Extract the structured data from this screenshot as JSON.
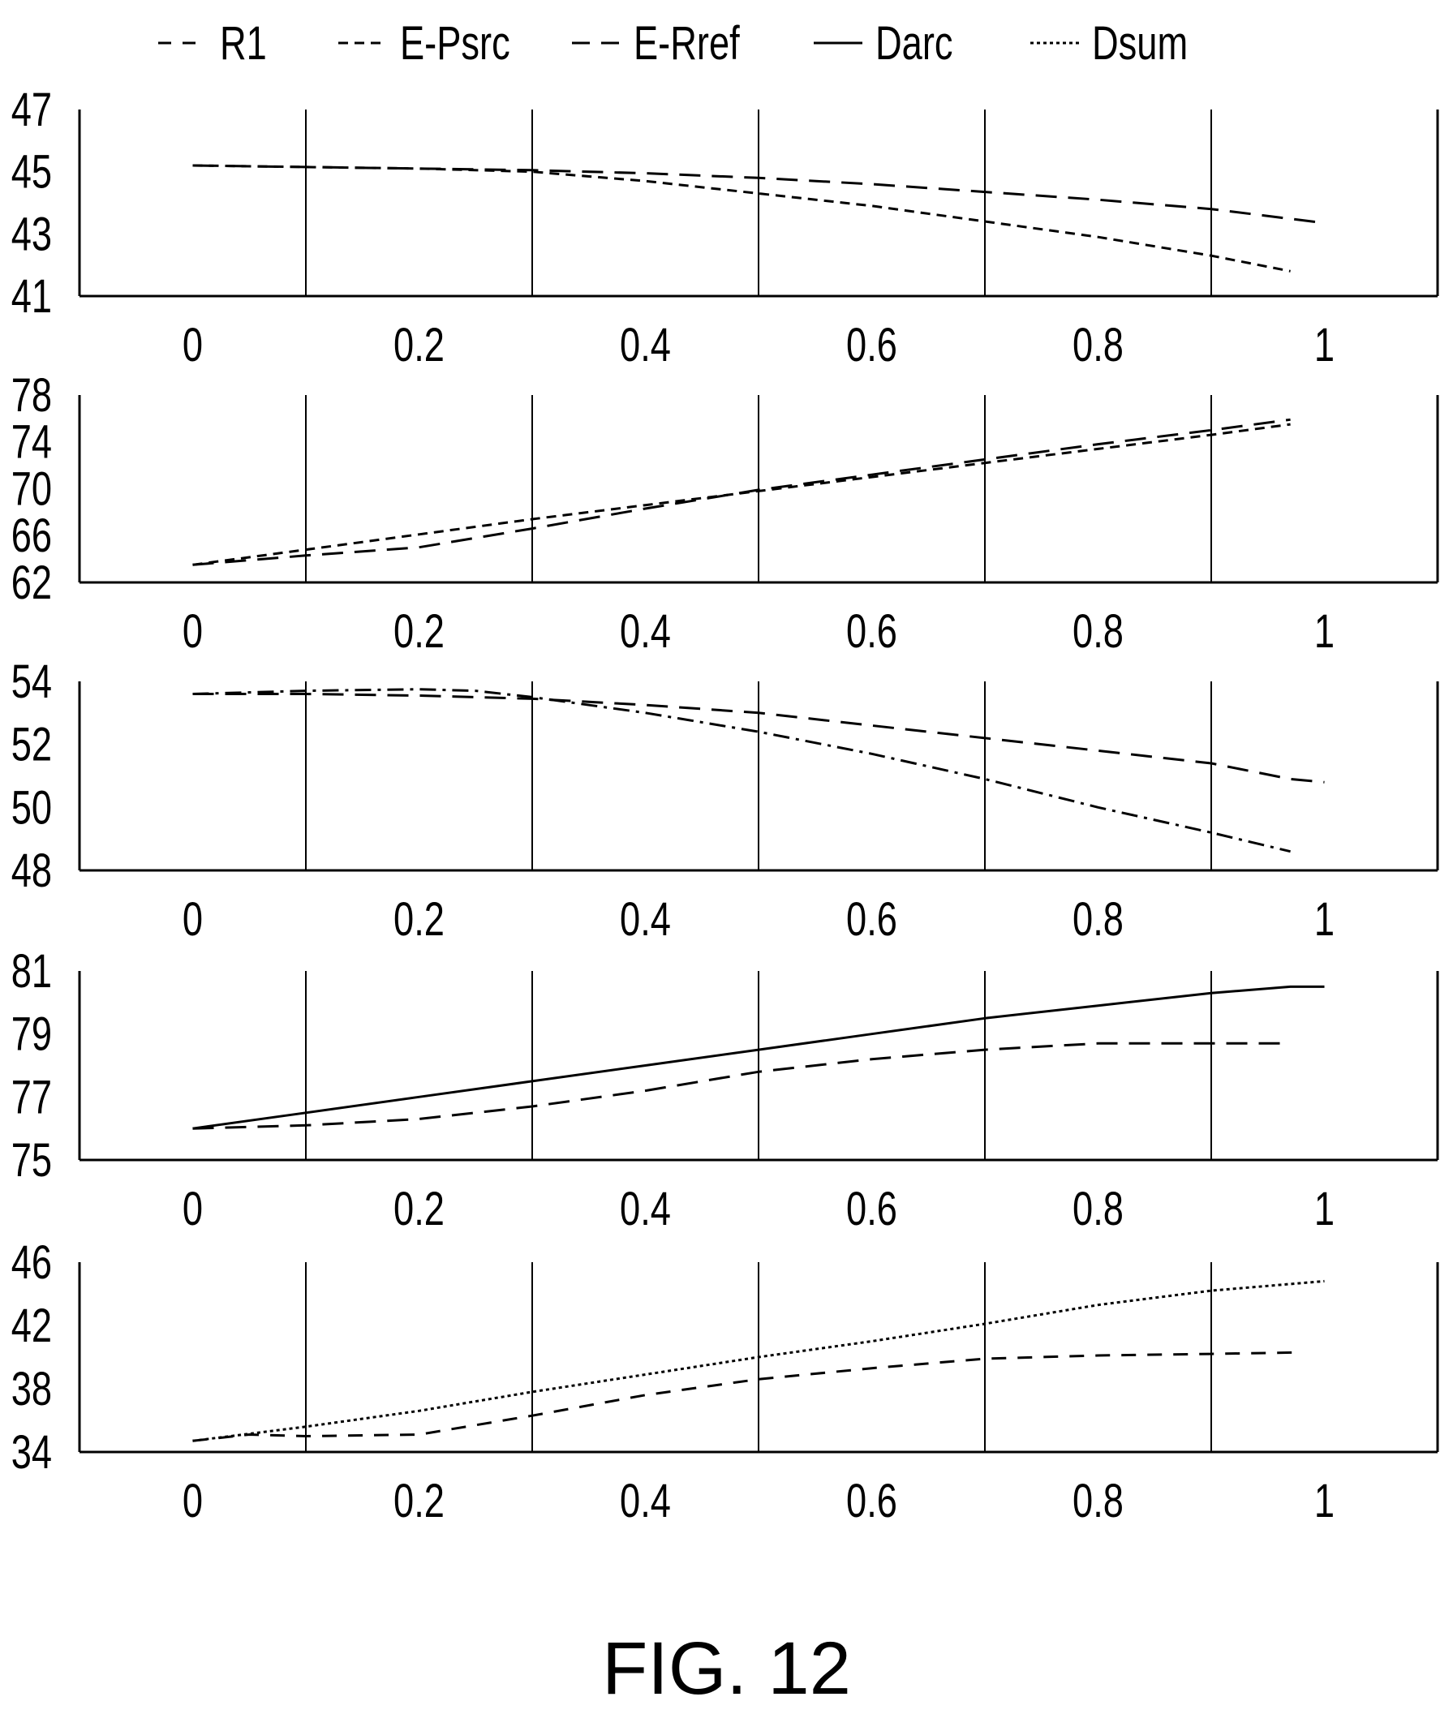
{
  "legend": [
    {
      "label": "R1",
      "style": "dash-gap"
    },
    {
      "label": "E-Psrc",
      "style": "short-dash"
    },
    {
      "label": "E-Rref",
      "style": "long-dash"
    },
    {
      "label": "Darc",
      "style": "solid"
    },
    {
      "label": "Dsum",
      "style": "dotted"
    }
  ],
  "caption": "FIG. 12",
  "chart_data": [
    {
      "type": "line",
      "x_ticks": [
        "0",
        "0.2",
        "0.4",
        "0.6",
        "0.8",
        "1"
      ],
      "y_ticks": [
        "41",
        "43",
        "45",
        "47"
      ],
      "xlim": [
        -0.1,
        1.1
      ],
      "ylim": [
        41,
        47
      ],
      "grid": "vertical",
      "series": [
        {
          "name": "E-Psrc",
          "style": "short-dash",
          "x": [
            0,
            0.1,
            0.2,
            0.3,
            0.4,
            0.5,
            0.6,
            0.7,
            0.8,
            0.9,
            0.97
          ],
          "y": [
            45.2,
            45.15,
            45.1,
            45.0,
            44.7,
            44.3,
            43.9,
            43.4,
            42.9,
            42.3,
            41.8
          ]
        },
        {
          "name": "E-Rref",
          "style": "long-dash",
          "x": [
            0,
            0.1,
            0.2,
            0.3,
            0.4,
            0.5,
            0.6,
            0.7,
            0.8,
            0.9,
            1.0
          ],
          "y": [
            45.2,
            45.15,
            45.1,
            45.05,
            44.95,
            44.8,
            44.6,
            44.35,
            44.1,
            43.8,
            43.35
          ]
        }
      ]
    },
    {
      "type": "line",
      "x_ticks": [
        "0",
        "0.2",
        "0.4",
        "0.6",
        "0.8",
        "1"
      ],
      "y_ticks": [
        "62",
        "66",
        "70",
        "74",
        "78"
      ],
      "xlim": [
        -0.1,
        1.1
      ],
      "ylim": [
        62,
        78
      ],
      "grid": "vertical",
      "series": [
        {
          "name": "E-Psrc",
          "style": "short-dash",
          "x": [
            0,
            0.1,
            0.2,
            0.3,
            0.4,
            0.5,
            0.6,
            0.7,
            0.8,
            0.9,
            0.97
          ],
          "y": [
            63.5,
            64.8,
            66.1,
            67.4,
            68.6,
            69.8,
            71.0,
            72.2,
            73.4,
            74.6,
            75.5
          ]
        },
        {
          "name": "E-Rref",
          "style": "long-dash",
          "x": [
            0,
            0.1,
            0.2,
            0.3,
            0.4,
            0.5,
            0.6,
            0.7,
            0.8,
            0.9,
            0.97
          ],
          "y": [
            63.5,
            64.3,
            65.0,
            66.6,
            68.3,
            69.9,
            71.2,
            72.5,
            73.8,
            75.0,
            75.9
          ]
        }
      ]
    },
    {
      "type": "line",
      "x_ticks": [
        "0",
        "0.2",
        "0.4",
        "0.6",
        "0.8",
        "1"
      ],
      "y_ticks": [
        "48",
        "50",
        "52",
        "54"
      ],
      "xlim": [
        -0.1,
        1.1
      ],
      "ylim": [
        48,
        54
      ],
      "grid": "vertical",
      "series": [
        {
          "name": "E-Psrc",
          "style": "dash-dot",
          "x": [
            0,
            0.1,
            0.2,
            0.25,
            0.3,
            0.4,
            0.5,
            0.6,
            0.7,
            0.8,
            0.9,
            0.97
          ],
          "y": [
            53.6,
            53.7,
            53.75,
            53.7,
            53.5,
            53.0,
            52.4,
            51.7,
            50.9,
            50.0,
            49.2,
            48.6
          ]
        },
        {
          "name": "E-Rref",
          "style": "long-dash",
          "x": [
            0,
            0.1,
            0.2,
            0.3,
            0.4,
            0.5,
            0.6,
            0.7,
            0.8,
            0.9,
            0.97,
            1.0
          ],
          "y": [
            53.6,
            53.6,
            53.55,
            53.45,
            53.25,
            53.0,
            52.6,
            52.2,
            51.8,
            51.4,
            50.9,
            50.8
          ]
        }
      ]
    },
    {
      "type": "line",
      "x_ticks": [
        "0",
        "0.2",
        "0.4",
        "0.6",
        "0.8",
        "1"
      ],
      "y_ticks": [
        "75",
        "77",
        "79",
        "81"
      ],
      "xlim": [
        -0.1,
        1.1
      ],
      "ylim": [
        75,
        81
      ],
      "grid": "vertical",
      "series": [
        {
          "name": "Darc",
          "style": "solid",
          "x": [
            0,
            0.1,
            0.2,
            0.3,
            0.4,
            0.5,
            0.6,
            0.7,
            0.8,
            0.9,
            0.97,
            1.0
          ],
          "y": [
            76.0,
            76.5,
            77.0,
            77.5,
            78.0,
            78.5,
            79.0,
            79.5,
            79.9,
            80.3,
            80.5,
            80.5
          ]
        },
        {
          "name": "E-Rref",
          "style": "long-dash",
          "x": [
            0,
            0.1,
            0.2,
            0.3,
            0.4,
            0.5,
            0.6,
            0.7,
            0.8,
            0.9,
            0.97
          ],
          "y": [
            76.0,
            76.1,
            76.3,
            76.7,
            77.2,
            77.8,
            78.2,
            78.5,
            78.7,
            78.7,
            78.7
          ]
        }
      ]
    },
    {
      "type": "line",
      "x_ticks": [
        "0",
        "0.2",
        "0.4",
        "0.6",
        "0.8",
        "1"
      ],
      "y_ticks": [
        "34",
        "38",
        "42",
        "46"
      ],
      "xlim": [
        -0.1,
        1.1
      ],
      "ylim": [
        34,
        46
      ],
      "grid": "vertical",
      "series": [
        {
          "name": "Dsum",
          "style": "dotted",
          "x": [
            0,
            0.1,
            0.2,
            0.3,
            0.4,
            0.5,
            0.6,
            0.7,
            0.8,
            0.9,
            1.0
          ],
          "y": [
            34.7,
            35.6,
            36.6,
            37.8,
            38.9,
            40.0,
            41.0,
            42.1,
            43.3,
            44.2,
            44.8
          ]
        },
        {
          "name": "R1",
          "style": "dash-gap",
          "x": [
            0,
            0.05,
            0.1,
            0.2,
            0.3,
            0.4,
            0.5,
            0.6,
            0.7,
            0.8,
            0.9,
            0.98
          ],
          "y": [
            34.7,
            35.1,
            35.0,
            35.1,
            36.3,
            37.6,
            38.6,
            39.3,
            39.9,
            40.1,
            40.2,
            40.3
          ]
        }
      ]
    }
  ]
}
